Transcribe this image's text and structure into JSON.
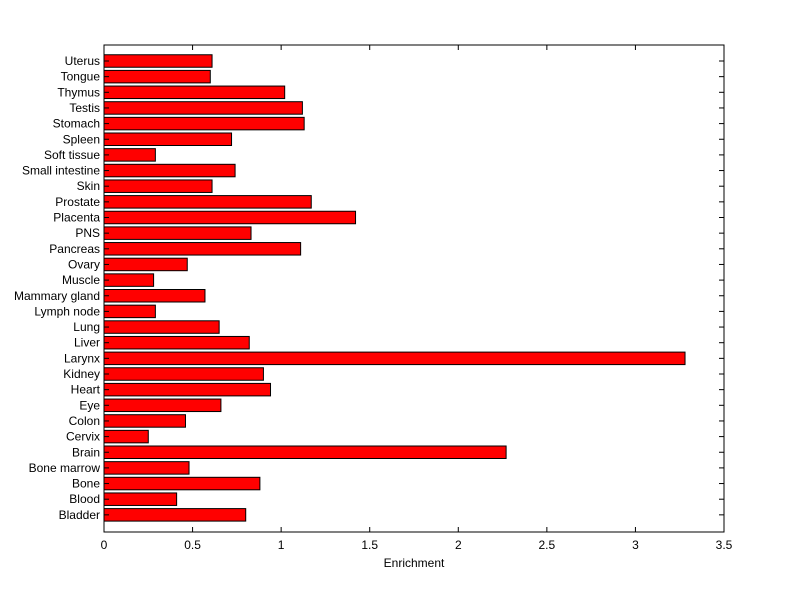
{
  "chart_data": {
    "type": "bar",
    "orientation": "horizontal",
    "title": "",
    "xlabel": "Enrichment",
    "ylabel": "",
    "xlim": [
      0,
      3.5
    ],
    "xticks": [
      "0",
      "0.5",
      "1",
      "1.5",
      "2",
      "2.5",
      "3",
      "3.5"
    ],
    "grid": false,
    "bar_color": "#ff0000",
    "bar_edge_color": "#000000",
    "categories": [
      "Uterus",
      "Tongue",
      "Thymus",
      "Testis",
      "Stomach",
      "Spleen",
      "Soft tissue",
      "Small intestine",
      "Skin",
      "Prostate",
      "Placenta",
      "PNS",
      "Pancreas",
      "Ovary",
      "Muscle",
      "Mammary gland",
      "Lymph node",
      "Lung",
      "Liver",
      "Larynx",
      "Kidney",
      "Heart",
      "Eye",
      "Colon",
      "Cervix",
      "Brain",
      "Bone marrow",
      "Bone",
      "Blood",
      "Bladder"
    ],
    "values": [
      0.61,
      0.6,
      1.02,
      1.12,
      1.13,
      0.72,
      0.29,
      0.74,
      0.61,
      1.17,
      1.42,
      0.83,
      1.11,
      0.47,
      0.28,
      0.57,
      0.29,
      0.65,
      0.82,
      3.28,
      0.9,
      0.94,
      0.66,
      0.46,
      0.25,
      2.27,
      0.48,
      0.88,
      0.41,
      0.8
    ]
  }
}
